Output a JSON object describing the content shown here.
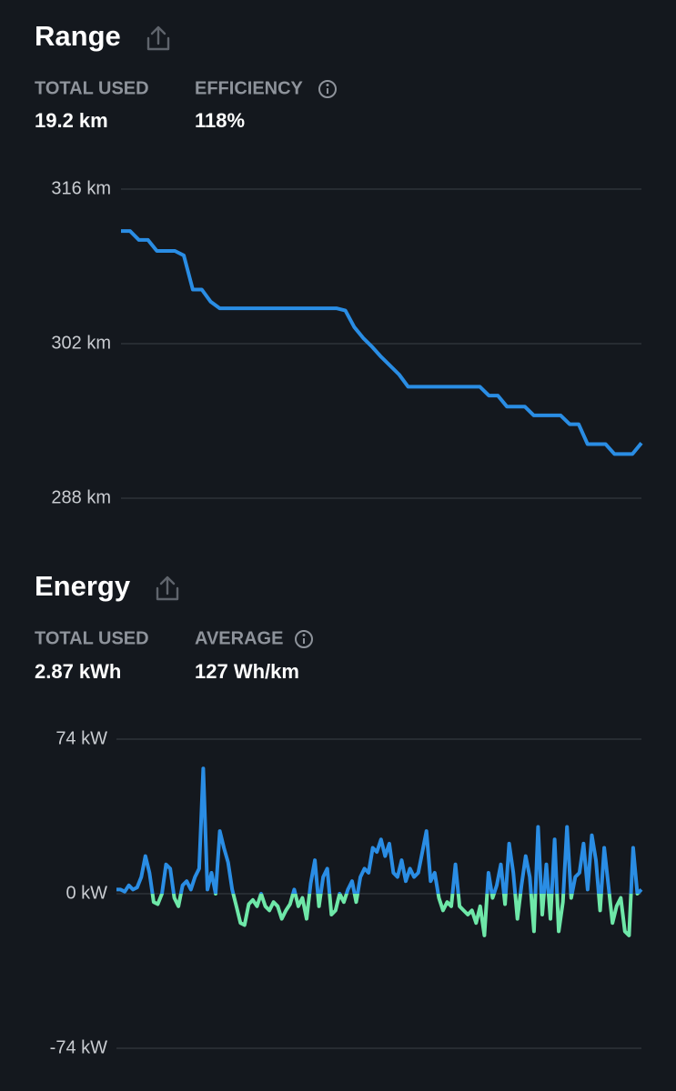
{
  "chart_data": [
    {
      "type": "line",
      "title": "Range",
      "stats": [
        {
          "label": "TOTAL USED",
          "value": "19.2 km"
        },
        {
          "label": "EFFICIENCY",
          "value": "118%"
        }
      ],
      "values": [
        312.2,
        312.2,
        311.4,
        311.4,
        310.4,
        310.4,
        310.4,
        310.0,
        306.9,
        306.9,
        305.8,
        305.2,
        305.2,
        305.2,
        305.2,
        305.2,
        305.2,
        305.2,
        305.2,
        305.2,
        305.2,
        305.2,
        305.2,
        305.2,
        305.2,
        305.0,
        303.5,
        302.5,
        301.7,
        300.8,
        300.0,
        299.2,
        298.1,
        298.1,
        298.1,
        298.1,
        298.1,
        298.1,
        298.1,
        298.1,
        298.1,
        297.3,
        297.3,
        296.3,
        296.3,
        296.3,
        295.5,
        295.5,
        295.5,
        295.5,
        294.7,
        294.7,
        292.9,
        292.9,
        292.9,
        292.0,
        292.0,
        292.0,
        293.0
      ],
      "color": "#2a8de4",
      "ylim": [
        288,
        316
      ],
      "yticks": [
        {
          "value": 316,
          "label": "316 km"
        },
        {
          "value": 302,
          "label": "302 km"
        },
        {
          "value": 288,
          "label": "288 km"
        }
      ],
      "grid": true
    },
    {
      "type": "line",
      "title": "Energy",
      "stats": [
        {
          "label": "TOTAL USED",
          "value": "2.87 kWh"
        },
        {
          "label": "AVERAGE",
          "value": "127 Wh/km"
        }
      ],
      "values": [
        2,
        2,
        1,
        4,
        2,
        3,
        8,
        18,
        10,
        -4,
        -5,
        0,
        14,
        12,
        -2,
        -6,
        4,
        6,
        2,
        8,
        12,
        60,
        2,
        10,
        0,
        30,
        22,
        15,
        2,
        -6,
        -14,
        -15,
        -5,
        -3,
        -6,
        0,
        -6,
        -8,
        -4,
        -6,
        -12,
        -8,
        -5,
        2,
        -6,
        -2,
        -12,
        5,
        16,
        -6,
        8,
        12,
        -10,
        -8,
        0,
        -4,
        2,
        6,
        -4,
        8,
        12,
        10,
        22,
        20,
        26,
        18,
        24,
        10,
        8,
        16,
        6,
        12,
        8,
        10,
        20,
        30,
        6,
        10,
        -2,
        -8,
        -4,
        -6,
        14,
        -6,
        -8,
        -10,
        -8,
        -14,
        -6,
        -20,
        10,
        -2,
        4,
        14,
        -5,
        24,
        10,
        -12,
        4,
        18,
        8,
        -18,
        32,
        -10,
        14,
        -12,
        26,
        -18,
        -4,
        32,
        -2,
        8,
        10,
        24,
        2,
        28,
        16,
        -8,
        22,
        4,
        -14,
        -6,
        -2,
        -18,
        -20,
        22,
        0,
        2
      ],
      "color": "#2a8de4",
      "negative_color": "#6ee7a8",
      "ylim": [
        -74,
        74
      ],
      "yticks": [
        {
          "value": 74,
          "label": "74 kW"
        },
        {
          "value": 0,
          "label": "0 kW"
        },
        {
          "value": -74,
          "label": "-74 kW"
        }
      ],
      "grid": true
    }
  ]
}
